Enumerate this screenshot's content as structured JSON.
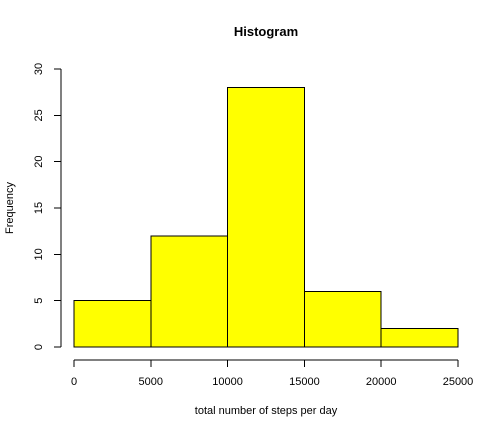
{
  "chart_data": {
    "type": "bar",
    "title": "Histogram",
    "xlabel": "total number of steps per day",
    "ylabel": "Frequency",
    "bins": [
      {
        "from": 0,
        "to": 5000,
        "count": 5
      },
      {
        "from": 5000,
        "to": 10000,
        "count": 12
      },
      {
        "from": 10000,
        "to": 15000,
        "count": 28
      },
      {
        "from": 15000,
        "to": 20000,
        "count": 6
      },
      {
        "from": 20000,
        "to": 25000,
        "count": 2
      }
    ],
    "xlim": [
      0,
      25000
    ],
    "ylim": [
      0,
      30
    ],
    "x_ticks": [
      0,
      5000,
      10000,
      15000,
      20000,
      25000
    ],
    "y_ticks": [
      0,
      5,
      10,
      15,
      20,
      25,
      30
    ],
    "bar_color": "#ffff00",
    "edge_color": "#000000",
    "grid": false,
    "legend": "none"
  }
}
